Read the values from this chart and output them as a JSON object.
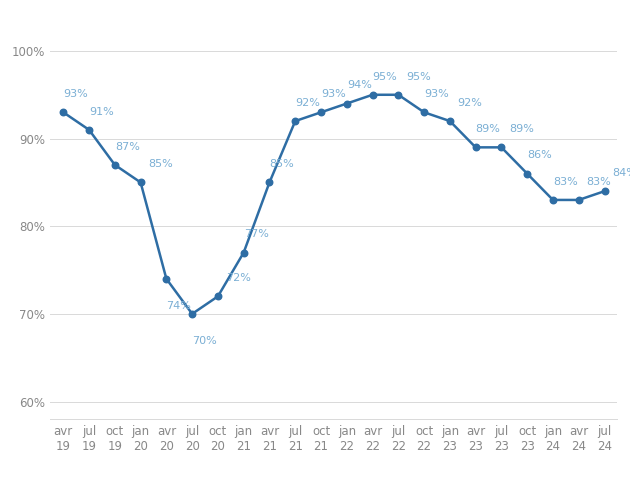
{
  "x_labels": [
    "avr\n19",
    "jul\n19",
    "oct\n19",
    "jan\n20",
    "avr\n20",
    "jul\n20",
    "oct\n20",
    "jan\n21",
    "avr\n21",
    "jul\n21",
    "oct\n21",
    "jan\n22",
    "avr\n22",
    "jul\n22",
    "oct\n22",
    "jan\n23",
    "avr\n23",
    "jul\n23",
    "oct\n23",
    "jan\n24",
    "avr\n24",
    "jul\n24"
  ],
  "values": [
    93,
    91,
    87,
    85,
    74,
    70,
    72,
    77,
    85,
    92,
    93,
    94,
    95,
    95,
    93,
    92,
    89,
    89,
    86,
    83,
    83,
    84
  ],
  "label_offsets_x": [
    0,
    0,
    0,
    0.3,
    0,
    0,
    0.3,
    0,
    0,
    0,
    0,
    0,
    0,
    0.3,
    0,
    0.3,
    0,
    0.3,
    0,
    0,
    0.3,
    0.3
  ],
  "label_offsets_y": [
    1.5,
    1.5,
    1.5,
    1.5,
    -2.5,
    -2.5,
    1.5,
    1.5,
    1.5,
    1.5,
    1.5,
    1.5,
    1.5,
    1.5,
    1.5,
    1.5,
    1.5,
    1.5,
    1.5,
    1.5,
    1.5,
    1.5
  ],
  "label_va": [
    "bottom",
    "bottom",
    "bottom",
    "bottom",
    "top",
    "top",
    "bottom",
    "bottom",
    "bottom",
    "bottom",
    "bottom",
    "bottom",
    "bottom",
    "bottom",
    "bottom",
    "bottom",
    "bottom",
    "bottom",
    "bottom",
    "bottom",
    "bottom",
    "bottom"
  ],
  "line_color": "#2e6da4",
  "marker_color": "#2e6da4",
  "background_color": "#ffffff",
  "grid_color": "#d9d9d9",
  "label_color": "#7bafd4",
  "ytick_labels": [
    "60%",
    "70%",
    "80%",
    "90%",
    "100%"
  ],
  "ytick_values": [
    60,
    70,
    80,
    90,
    100
  ],
  "ylim": [
    58,
    103
  ],
  "xlim": [
    -0.5,
    21.5
  ],
  "label_fontsize": 8.0,
  "tick_fontsize": 8.5
}
